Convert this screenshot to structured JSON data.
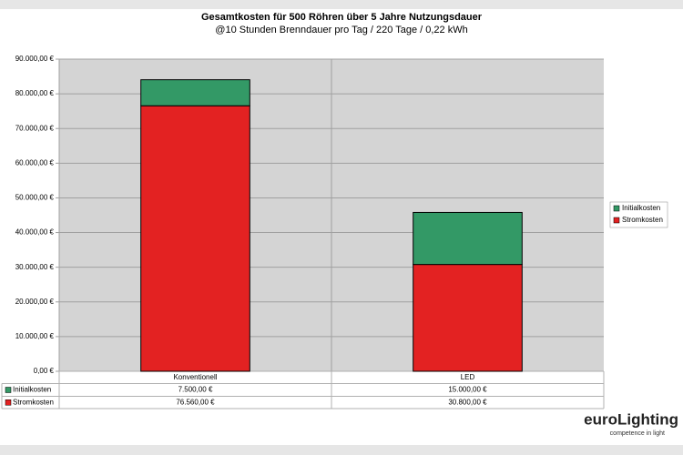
{
  "chart_data": {
    "type": "stacked-bar",
    "title": "Gesamtkosten für 500 Röhren über 5 Jahre Nutzungsdauer",
    "subtitle": "@10 Stunden Brenndauer pro Tag / 220 Tage / 0,22 kWh",
    "categories": [
      "Konventionell",
      "LED"
    ],
    "series": [
      {
        "name": "Initialkosten",
        "color": "#339966",
        "values": [
          7500,
          15000
        ],
        "value_labels": [
          "7.500,00 €",
          "15.000,00 €"
        ]
      },
      {
        "name": "Stromkosten",
        "color": "#e32222",
        "values": [
          76560,
          30800
        ],
        "value_labels": [
          "76.560,00 €",
          "30.800,00 €"
        ]
      }
    ],
    "ylim": [
      0,
      90000
    ],
    "yticks": [
      {
        "value": 0,
        "label": "0,00 €"
      },
      {
        "value": 10000,
        "label": "10.000,00 €"
      },
      {
        "value": 20000,
        "label": "20.000,00 €"
      },
      {
        "value": 30000,
        "label": "30.000,00 €"
      },
      {
        "value": 40000,
        "label": "40.000,00 €"
      },
      {
        "value": 50000,
        "label": "50.000,00 €"
      },
      {
        "value": 60000,
        "label": "60.000,00 €"
      },
      {
        "value": 70000,
        "label": "70.000,00 €"
      },
      {
        "value": 80000,
        "label": "80.000,00 €"
      },
      {
        "value": 90000,
        "label": "90.000,00 €"
      }
    ],
    "grid": true,
    "legend": "right"
  },
  "logo": {
    "name": "euroLighting",
    "tagline": "competence in light"
  }
}
